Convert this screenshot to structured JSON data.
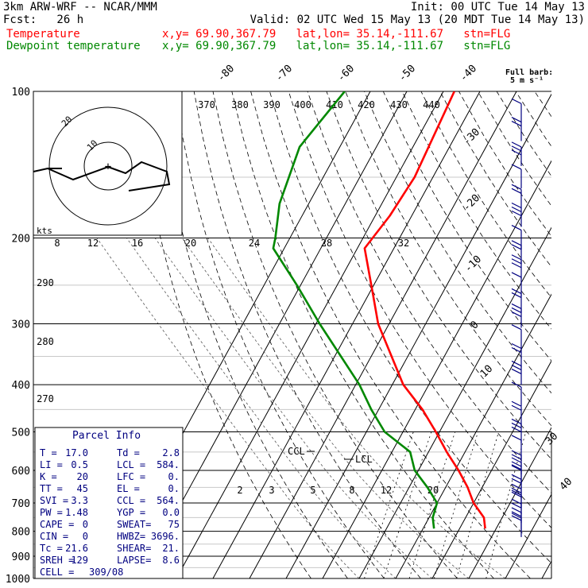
{
  "header": {
    "model": "3km ARW-WRF -- NCAR/MMM",
    "init": "Init: 00 UTC Tue 14 May 13",
    "fcst": "Fcst:   26 h",
    "valid": "Valid: 02 UTC Wed 15 May 13 (20 MDT Tue 14 May 13)",
    "lines": [
      {
        "name": "Temperature",
        "loc": "x,y= 69.90,367.79   lat,lon= 35.14,-111.67   stn=FLG",
        "color": "#ff0000"
      },
      {
        "name": "Dewpoint temperature",
        "loc": "x,y= 69.90,367.79   lat,lon= 35.14,-111.67   stn=FLG",
        "color": "#008800"
      }
    ]
  },
  "chart_data": {
    "type": "skew-t",
    "pressure_labels": [
      "100",
      "200",
      "300",
      "400",
      "500",
      "600",
      "700",
      "800",
      "900",
      "1000"
    ],
    "pressure_levels": [
      100,
      200,
      300,
      400,
      500,
      600,
      700,
      800,
      900,
      1000
    ],
    "isotherms": [
      -80,
      -70,
      -60,
      -50,
      -40,
      -30,
      -20,
      -10,
      0,
      10,
      20,
      30,
      40
    ],
    "isotherm_labels": [
      "-80",
      "-70",
      "-60",
      "-50",
      "-40",
      "-30",
      "-20",
      "-10",
      "0",
      "10",
      "30",
      "40"
    ],
    "theta_labels": [
      "370",
      "380",
      "390",
      "400",
      "410",
      "420",
      "430",
      "440"
    ],
    "theta_e_labels": [
      "290",
      "280",
      "270"
    ],
    "mixing_ratio_labels": [
      "8",
      "12",
      "16",
      "20",
      "24",
      "28",
      "32"
    ],
    "mixing_ratio_low_labels": [
      "2",
      "3",
      "5",
      "8",
      "12",
      "20"
    ],
    "temperature": [
      {
        "p": 100,
        "t": -57
      },
      {
        "p": 150,
        "t": -55
      },
      {
        "p": 180,
        "t": -56
      },
      {
        "p": 210,
        "t": -58
      },
      {
        "p": 260,
        "t": -49
      },
      {
        "p": 300,
        "t": -43
      },
      {
        "p": 400,
        "t": -27
      },
      {
        "p": 450,
        "t": -18
      },
      {
        "p": 500,
        "t": -11
      },
      {
        "p": 550,
        "t": -5
      },
      {
        "p": 600,
        "t": 1
      },
      {
        "p": 650,
        "t": 6
      },
      {
        "p": 700,
        "t": 10
      },
      {
        "p": 750,
        "t": 15
      },
      {
        "p": 790,
        "t": 17
      }
    ],
    "dewpoint": [
      {
        "p": 100,
        "t": -87
      },
      {
        "p": 130,
        "t": -91
      },
      {
        "p": 170,
        "t": -88
      },
      {
        "p": 200,
        "t": -84
      },
      {
        "p": 210,
        "t": -83
      },
      {
        "p": 250,
        "t": -71
      },
      {
        "p": 300,
        "t": -59
      },
      {
        "p": 400,
        "t": -39
      },
      {
        "p": 450,
        "t": -32
      },
      {
        "p": 500,
        "t": -25
      },
      {
        "p": 550,
        "t": -15
      },
      {
        "p": 600,
        "t": -11
      },
      {
        "p": 650,
        "t": -5
      },
      {
        "p": 700,
        "t": 0
      },
      {
        "p": 750,
        "t": 1
      },
      {
        "p": 790,
        "t": 3
      }
    ],
    "ccl_label": "CCL",
    "lcl_label": "LCL",
    "wind_legend": "Full barb:",
    "wind_legend_units": "5 m s⁻¹",
    "hodograph_units": "kts",
    "hodograph_ring_labels": [
      "10",
      "20"
    ],
    "colors": {
      "temperature": "#ff0000",
      "dewpoint": "#008800",
      "barbs": "#000080",
      "lines": "#000000"
    }
  },
  "parcel": {
    "title": "Parcel Info",
    "rows": [
      [
        "T  =",
        "17.0",
        "Td =",
        "2.8"
      ],
      [
        "LI =",
        "0.5",
        "LCL =",
        "584."
      ],
      [
        "K  =",
        "20",
        "LFC =",
        "0."
      ],
      [
        "TT =",
        "45",
        "EL =",
        "0."
      ],
      [
        "SVI =",
        "3.3",
        "CCL =",
        "564."
      ],
      [
        "PW =",
        "1.48",
        "YGP =",
        "0.0"
      ],
      [
        "CAPE =",
        "0",
        "SWEAT=",
        "75"
      ],
      [
        "CIN =",
        "0",
        "HWBZ=",
        "3696."
      ],
      [
        "Tc =",
        "21.6",
        "SHEAR=",
        "21."
      ],
      [
        "SREH =",
        "129",
        "LAPSE=",
        "8.6"
      ],
      [
        "CELL =",
        "309/08",
        "",
        ""
      ]
    ]
  }
}
